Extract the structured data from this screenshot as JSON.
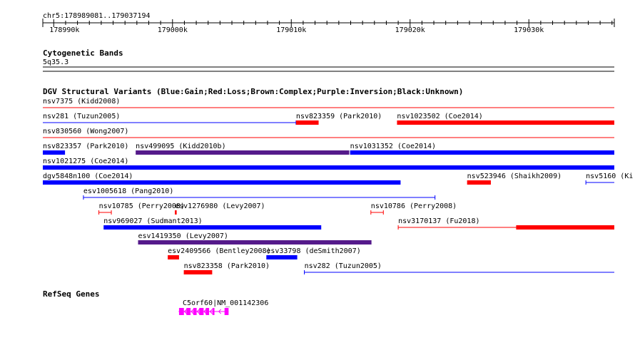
{
  "locus": "chr5:178989081..179037194",
  "ruler": {
    "ticks": [
      {
        "label": "178990k",
        "pos": 178990000
      },
      {
        "label": "179000k",
        "pos": 179000000
      },
      {
        "label": "179010k",
        "pos": 179010000
      },
      {
        "label": "179020k",
        "pos": 179020000
      },
      {
        "label": "179030k",
        "pos": 179030000
      }
    ]
  },
  "cytoband": {
    "title": "Cytogenetic Bands",
    "band": "5q35.3"
  },
  "dgv": {
    "title": "DGV Structural Variants (Blue:Gain;Red:Loss;Brown:Complex;Purple:Inversion;Black:Unknown)",
    "colors": {
      "gain": "#0000ff",
      "loss": "#ff0000",
      "inversion": "#551a8b",
      "unknown": "#000000"
    },
    "features": [
      {
        "label": "nsv7375 (Kidd2008)",
        "start": 178989081,
        "end": 179037194,
        "type": "loss",
        "style": "line",
        "row": 0
      },
      {
        "label": "nsv281 (Tuzun2005)",
        "start": 178989081,
        "end": 179010400,
        "type": "gain",
        "style": "line",
        "row": 1
      },
      {
        "label": "nsv823359 (Park2010)",
        "start": 179010400,
        "end": 179012300,
        "type": "loss",
        "style": "bar",
        "row": 1
      },
      {
        "label": "nsv1023502 (Coe2014)",
        "start": 179018900,
        "end": 179037194,
        "type": "loss",
        "style": "bar",
        "row": 1
      },
      {
        "label": "nsv830560 (Wong2007)",
        "start": 178989081,
        "end": 179037194,
        "type": "loss",
        "style": "line",
        "row": 2
      },
      {
        "label": "nsv823357 (Park2010)",
        "start": 178989081,
        "end": 178990950,
        "type": "gain",
        "style": "bar",
        "row": 3
      },
      {
        "label": "nsv499095 (Kidd2010b)",
        "start": 178996900,
        "end": 179014880,
        "type": "inversion",
        "style": "bar",
        "row": 3
      },
      {
        "label": "nsv1031352 (Coe2014)",
        "start": 179014950,
        "end": 179037194,
        "type": "gain",
        "style": "bar",
        "row": 3
      },
      {
        "label": "nsv1021275 (Coe2014)",
        "start": 178989081,
        "end": 179037194,
        "type": "gain",
        "style": "bar",
        "row": 4
      },
      {
        "label": "dgv5848n100 (Coe2014)",
        "start": 178989081,
        "end": 179019200,
        "type": "gain",
        "style": "bar",
        "row": 5
      },
      {
        "label": "nsv523946 (Shaikh2009)",
        "start": 179024800,
        "end": 179026800,
        "type": "loss",
        "style": "bar",
        "row": 5
      },
      {
        "label": "nsv5160 (Ki",
        "start": 179034800,
        "end": 179037194,
        "type": "gain",
        "style": "line",
        "row": 5
      },
      {
        "label": "esv1005618 (Pang2010)",
        "start": 178992500,
        "end": 179022100,
        "type": "gain",
        "style": "line",
        "row": 6
      },
      {
        "label": "nsv10785 (Perry2008)",
        "start": 178993800,
        "end": 178994850,
        "type": "loss",
        "style": "line",
        "row": 7
      },
      {
        "label": "esv1276980 (Levy2007)",
        "start": 179000200,
        "end": 179000350,
        "type": "loss",
        "style": "bar",
        "row": 7
      },
      {
        "label": "nsv10786 (Perry2008)",
        "start": 179016700,
        "end": 179017750,
        "type": "loss",
        "style": "line",
        "row": 7
      },
      {
        "label": "nsv969027 (Sudmant2013)",
        "start": 178994200,
        "end": 179012520,
        "type": "gain",
        "style": "bar",
        "row": 8
      },
      {
        "label": "nsv3170137 (Fu2018)",
        "start": 179019000,
        "end": 179037194,
        "type": "loss",
        "style": "mixed",
        "thickStart": 179028930,
        "row": 8
      },
      {
        "label": "esv1419350 (Levy2007)",
        "start": 178997100,
        "end": 179016750,
        "type": "inversion",
        "style": "bar",
        "row": 9
      },
      {
        "label": "esv2409566 (Bentley2008)",
        "start": 178999600,
        "end": 179000550,
        "type": "loss",
        "style": "bar",
        "row": 10
      },
      {
        "label": "esv33798 (deSmith2007)",
        "start": 179007900,
        "end": 179010500,
        "type": "gain",
        "style": "bar",
        "row": 10
      },
      {
        "label": "nsv823358 (Park2010)",
        "start": 179000950,
        "end": 179003340,
        "type": "loss",
        "style": "bar",
        "row": 11
      },
      {
        "label": "nsv282 (Tuzun2005)",
        "start": 179011100,
        "end": 179037194,
        "type": "gain",
        "style": "line",
        "row": 11
      }
    ]
  },
  "refseq": {
    "title": "RefSeq Genes",
    "gene": {
      "label": "C5orf60|NM_001142306",
      "color": "#ff00ff",
      "strand": "-",
      "start": 179000550,
      "end": 179004720,
      "exons": [
        [
          179000550,
          179000960
        ],
        [
          179001170,
          179001520
        ],
        [
          179001750,
          179002030
        ],
        [
          179002250,
          179002620
        ],
        [
          179002800,
          179003080
        ],
        [
          179003360,
          179003530
        ],
        [
          179004380,
          179004720
        ]
      ]
    }
  }
}
